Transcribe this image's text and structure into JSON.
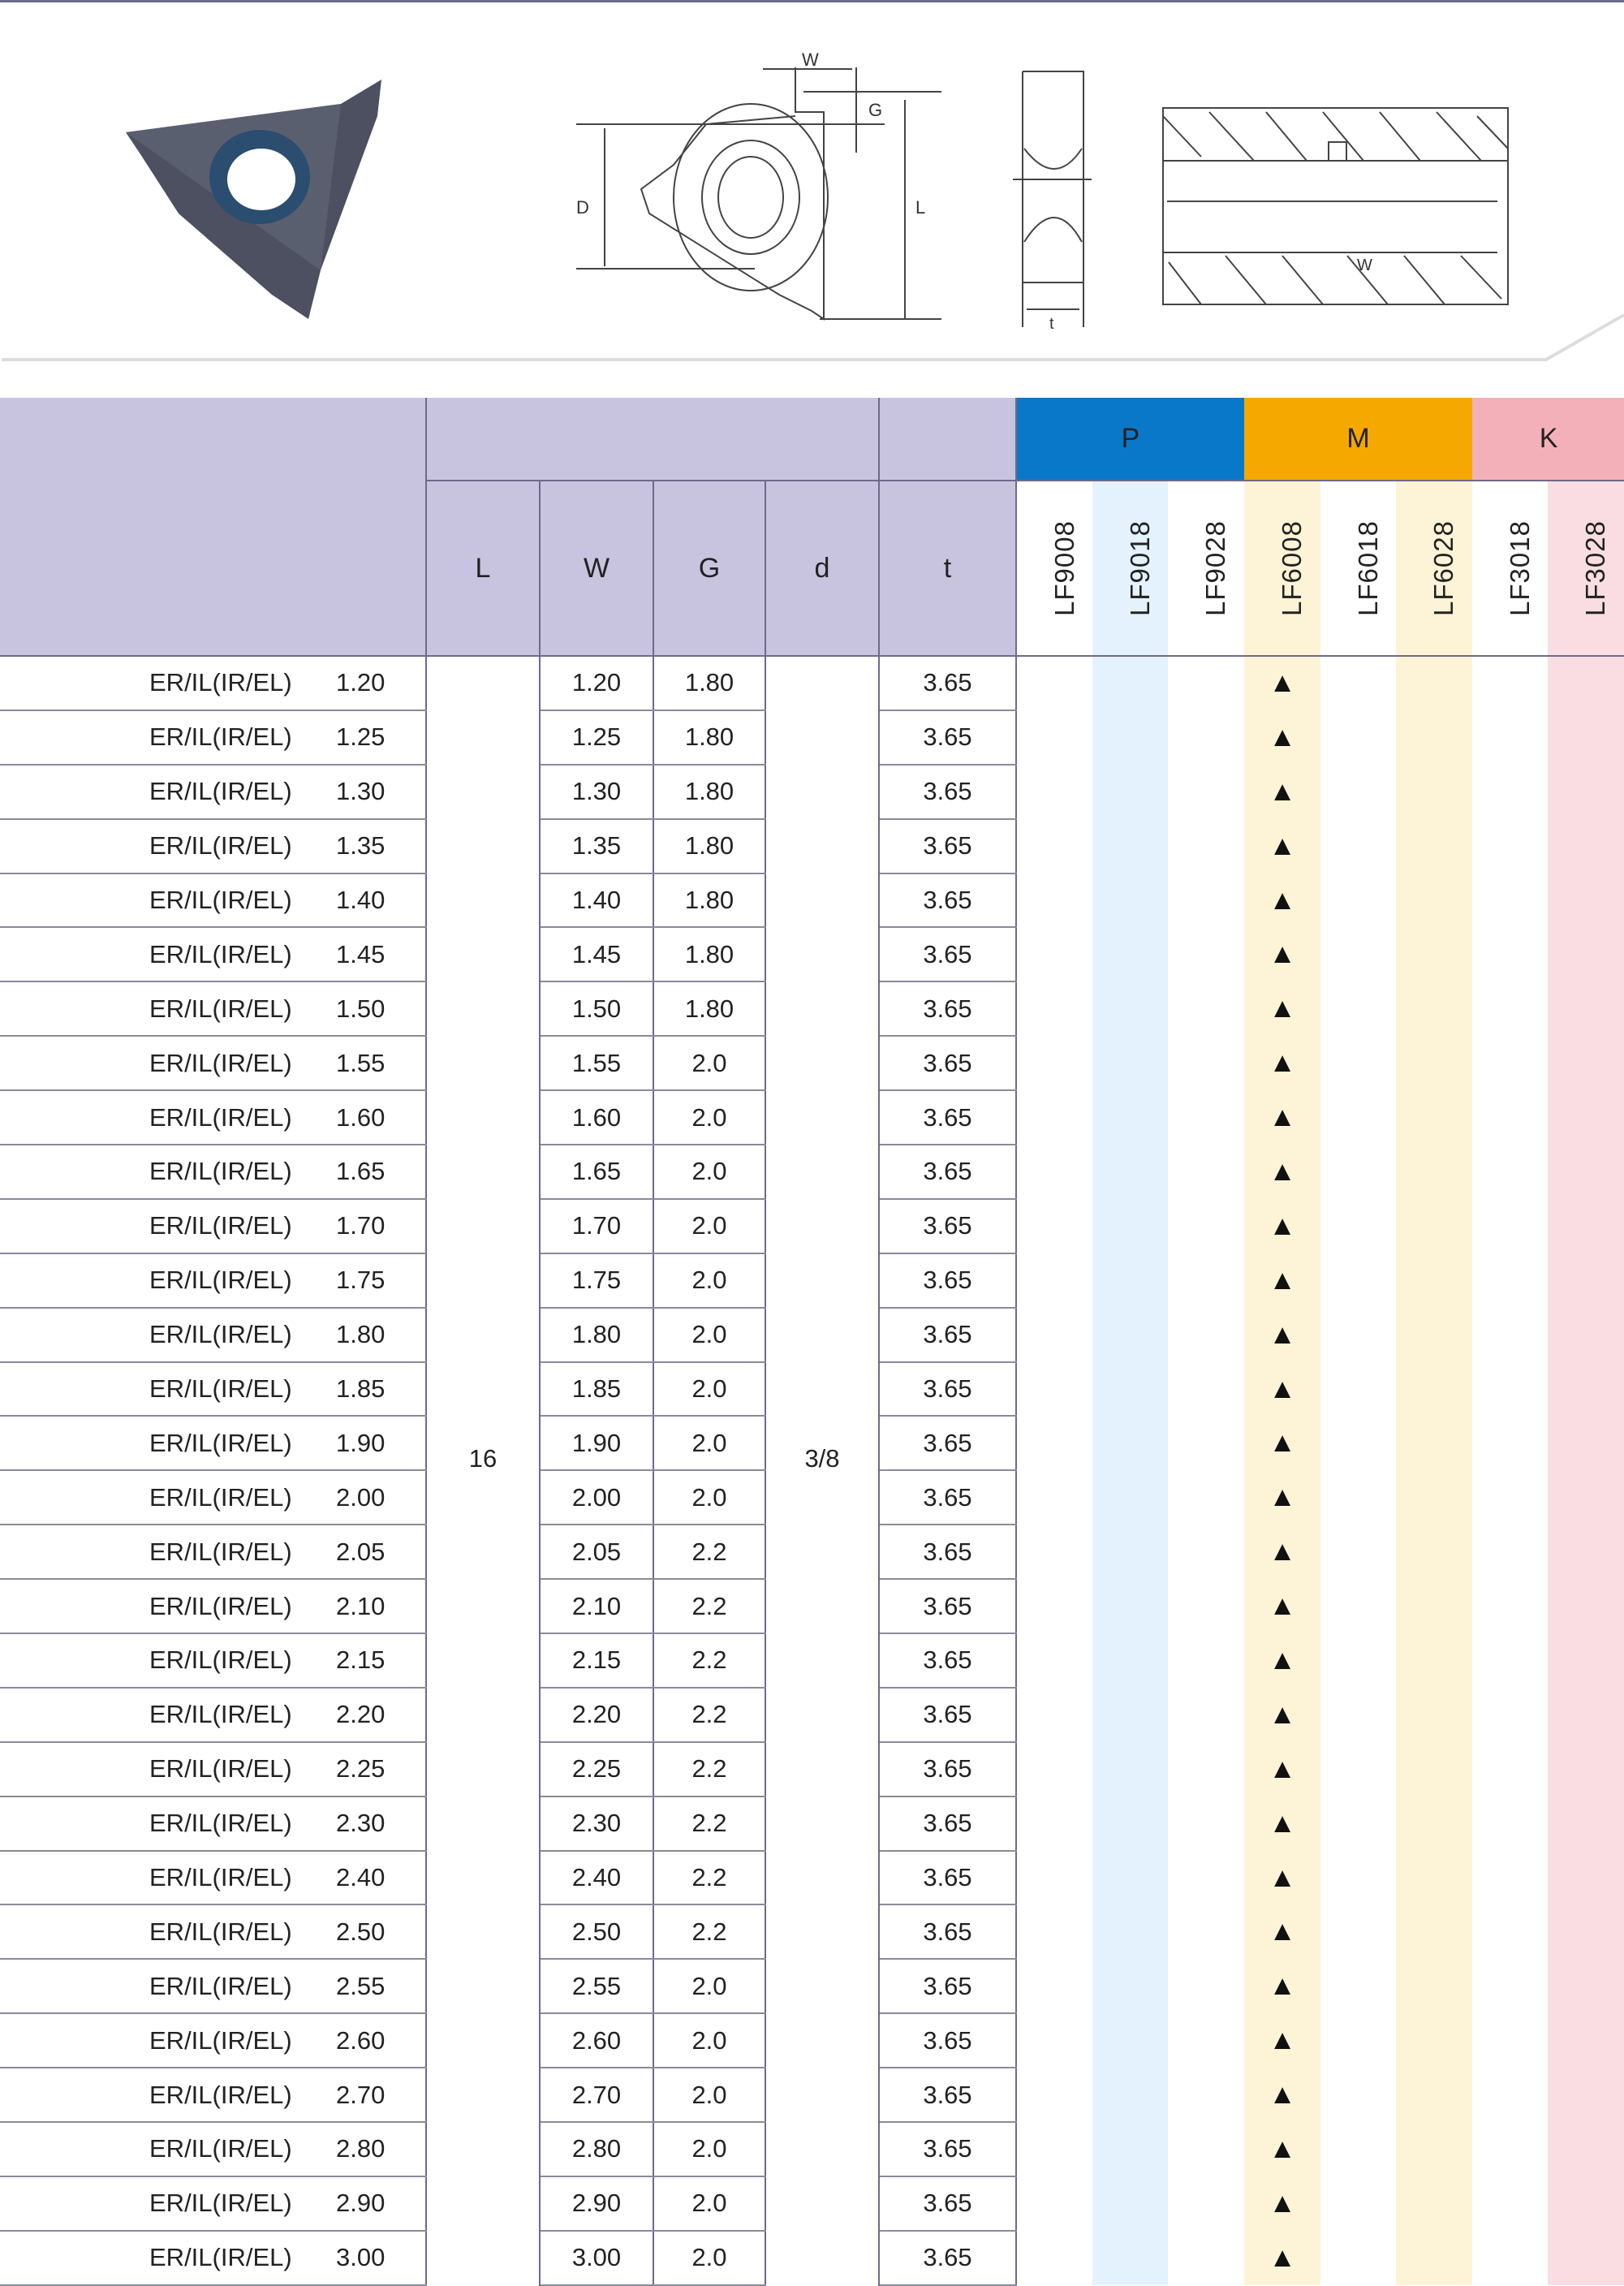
{
  "diagram_labels": {
    "W": "W",
    "G": "G",
    "D": "D",
    "L": "L",
    "t": "t",
    "W2": "W"
  },
  "header": {
    "columns": [
      "L",
      "W",
      "G",
      "d",
      "t"
    ],
    "groups": [
      {
        "label": "P",
        "color": "#0a78c8"
      },
      {
        "label": "M",
        "color": "#f5a800"
      },
      {
        "label": "K",
        "color": "#f4b0b8"
      }
    ],
    "grades": [
      "LF9008",
      "LF9018",
      "LF9028",
      "LF6008",
      "LF6018",
      "LF6028",
      "LF3018",
      "LF3028"
    ],
    "grade_tints": [
      "#ffffff",
      "#e3f2fc",
      "#ffffff",
      "#fdf3d6",
      "#ffffff",
      "#fdf3d6",
      "#ffffff",
      "#f9dde2"
    ]
  },
  "merged": {
    "L": "16",
    "d": "3/8"
  },
  "mark": "▲",
  "rows": [
    {
      "model": "ER/IL(IR/EL)",
      "size": "1.20",
      "W": "1.20",
      "G": "1.80",
      "t": "3.65",
      "grade": "LF6008"
    },
    {
      "model": "ER/IL(IR/EL)",
      "size": "1.25",
      "W": "1.25",
      "G": "1.80",
      "t": "3.65",
      "grade": "LF6008"
    },
    {
      "model": "ER/IL(IR/EL)",
      "size": "1.30",
      "W": "1.30",
      "G": "1.80",
      "t": "3.65",
      "grade": "LF6008"
    },
    {
      "model": "ER/IL(IR/EL)",
      "size": "1.35",
      "W": "1.35",
      "G": "1.80",
      "t": "3.65",
      "grade": "LF6008"
    },
    {
      "model": "ER/IL(IR/EL)",
      "size": "1.40",
      "W": "1.40",
      "G": "1.80",
      "t": "3.65",
      "grade": "LF6008"
    },
    {
      "model": "ER/IL(IR/EL)",
      "size": "1.45",
      "W": "1.45",
      "G": "1.80",
      "t": "3.65",
      "grade": "LF6008"
    },
    {
      "model": "ER/IL(IR/EL)",
      "size": "1.50",
      "W": "1.50",
      "G": "1.80",
      "t": "3.65",
      "grade": "LF6008"
    },
    {
      "model": "ER/IL(IR/EL)",
      "size": "1.55",
      "W": "1.55",
      "G": "2.0",
      "t": "3.65",
      "grade": "LF6008"
    },
    {
      "model": "ER/IL(IR/EL)",
      "size": "1.60",
      "W": "1.60",
      "G": "2.0",
      "t": "3.65",
      "grade": "LF6008"
    },
    {
      "model": "ER/IL(IR/EL)",
      "size": "1.65",
      "W": "1.65",
      "G": "2.0",
      "t": "3.65",
      "grade": "LF6008"
    },
    {
      "model": "ER/IL(IR/EL)",
      "size": "1.70",
      "W": "1.70",
      "G": "2.0",
      "t": "3.65",
      "grade": "LF6008"
    },
    {
      "model": "ER/IL(IR/EL)",
      "size": "1.75",
      "W": "1.75",
      "G": "2.0",
      "t": "3.65",
      "grade": "LF6008"
    },
    {
      "model": "ER/IL(IR/EL)",
      "size": "1.80",
      "W": "1.80",
      "G": "2.0",
      "t": "3.65",
      "grade": "LF6008"
    },
    {
      "model": "ER/IL(IR/EL)",
      "size": "1.85",
      "W": "1.85",
      "G": "2.0",
      "t": "3.65",
      "grade": "LF6008"
    },
    {
      "model": "ER/IL(IR/EL)",
      "size": "1.90",
      "W": "1.90",
      "G": "2.0",
      "t": "3.65",
      "grade": "LF6008"
    },
    {
      "model": "ER/IL(IR/EL)",
      "size": "2.00",
      "W": "2.00",
      "G": "2.0",
      "t": "3.65",
      "grade": "LF6008"
    },
    {
      "model": "ER/IL(IR/EL)",
      "size": "2.05",
      "W": "2.05",
      "G": "2.2",
      "t": "3.65",
      "grade": "LF6008"
    },
    {
      "model": "ER/IL(IR/EL)",
      "size": "2.10",
      "W": "2.10",
      "G": "2.2",
      "t": "3.65",
      "grade": "LF6008"
    },
    {
      "model": "ER/IL(IR/EL)",
      "size": "2.15",
      "W": "2.15",
      "G": "2.2",
      "t": "3.65",
      "grade": "LF6008"
    },
    {
      "model": "ER/IL(IR/EL)",
      "size": "2.20",
      "W": "2.20",
      "G": "2.2",
      "t": "3.65",
      "grade": "LF6008"
    },
    {
      "model": "ER/IL(IR/EL)",
      "size": "2.25",
      "W": "2.25",
      "G": "2.2",
      "t": "3.65",
      "grade": "LF6008"
    },
    {
      "model": "ER/IL(IR/EL)",
      "size": "2.30",
      "W": "2.30",
      "G": "2.2",
      "t": "3.65",
      "grade": "LF6008"
    },
    {
      "model": "ER/IL(IR/EL)",
      "size": "2.40",
      "W": "2.40",
      "G": "2.2",
      "t": "3.65",
      "grade": "LF6008"
    },
    {
      "model": "ER/IL(IR/EL)",
      "size": "2.50",
      "W": "2.50",
      "G": "2.2",
      "t": "3.65",
      "grade": "LF6008"
    },
    {
      "model": "ER/IL(IR/EL)",
      "size": "2.55",
      "W": "2.55",
      "G": "2.0",
      "t": "3.65",
      "grade": "LF6008"
    },
    {
      "model": "ER/IL(IR/EL)",
      "size": "2.60",
      "W": "2.60",
      "G": "2.0",
      "t": "3.65",
      "grade": "LF6008"
    },
    {
      "model": "ER/IL(IR/EL)",
      "size": "2.70",
      "W": "2.70",
      "G": "2.0",
      "t": "3.65",
      "grade": "LF6008"
    },
    {
      "model": "ER/IL(IR/EL)",
      "size": "2.80",
      "W": "2.80",
      "G": "2.0",
      "t": "3.65",
      "grade": "LF6008"
    },
    {
      "model": "ER/IL(IR/EL)",
      "size": "2.90",
      "W": "2.90",
      "G": "2.0",
      "t": "3.65",
      "grade": "LF6008"
    },
    {
      "model": "ER/IL(IR/EL)",
      "size": "3.00",
      "W": "3.00",
      "G": "2.0",
      "t": "3.65",
      "grade": "LF6008"
    }
  ]
}
